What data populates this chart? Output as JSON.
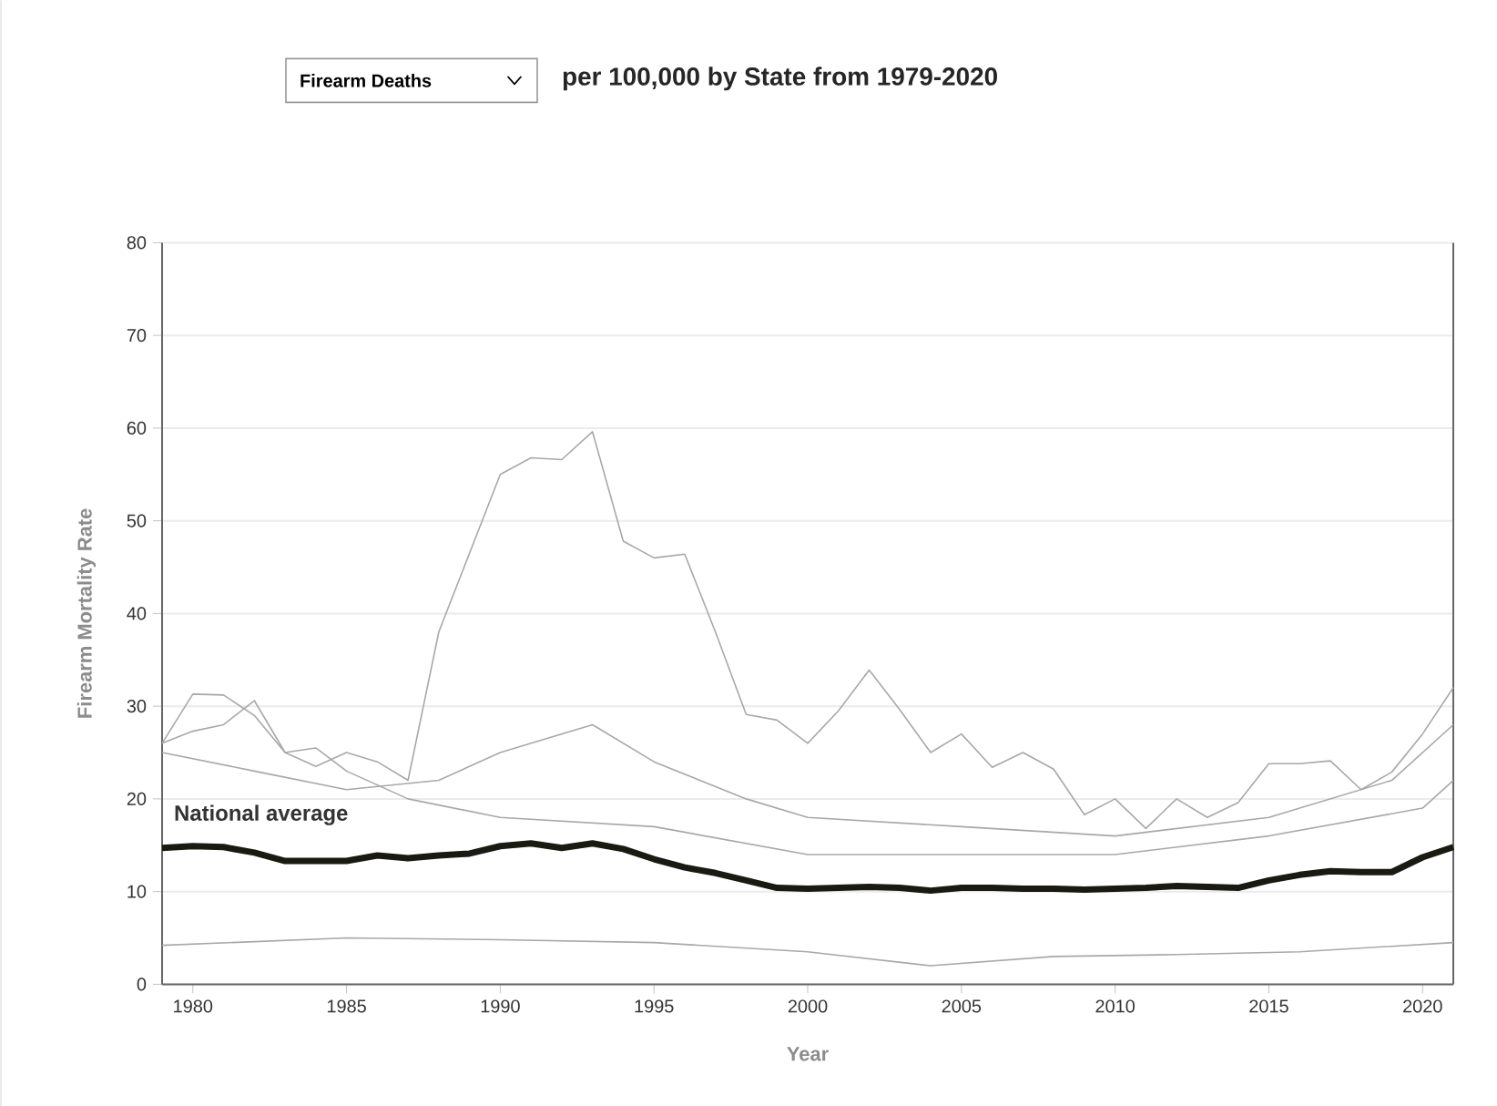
{
  "chart_data": {
    "type": "line",
    "title": "per 100,000 by State from 1979-2020",
    "annotations": [
      "Firearm Deaths"
    ],
    "xlabel": "Year",
    "ylabel": "Firearm Mortality Rate",
    "xlim": [
      1979,
      2021
    ],
    "xticks": [
      1980,
      1985,
      1990,
      1995,
      2000,
      2005,
      2010,
      2015,
      2020
    ],
    "ylim": [
      0,
      80
    ],
    "yticks": [
      0,
      10,
      20,
      30,
      40,
      50,
      60,
      70,
      80
    ],
    "grid": "y",
    "line_style": "solid",
    "series": [
      {
        "color": "#a8a8a8",
        "x": [
          1979,
          1980,
          1981,
          1982,
          1983,
          1984,
          1985,
          1986,
          1987,
          1988,
          1989,
          1990,
          1991,
          1992,
          1993,
          1994,
          1995,
          1996,
          1997,
          1998,
          1999,
          2000,
          2001,
          2002,
          2003,
          2004,
          2005,
          2006,
          2007,
          2008,
          2009,
          2010,
          2011,
          2012,
          2013,
          2014,
          2015,
          2016,
          2017,
          2018,
          2019,
          2020,
          2021
        ],
        "values": [
          26,
          27.3,
          28,
          30.6,
          25,
          23.5,
          25,
          24,
          22,
          38,
          46.5,
          55,
          56.8,
          56.6,
          59.6,
          47.8,
          46,
          46.4,
          38,
          29.1,
          28.5,
          26,
          29.5,
          33.9,
          29.6,
          25,
          27,
          23.4,
          25,
          23.2,
          18.3,
          20,
          16.8,
          20,
          18,
          19.6,
          23.8,
          23.8,
          24.1,
          21,
          22.9,
          27,
          32
        ]
      },
      {
        "color": "#a8a8a8",
        "x": [
          1979,
          1980,
          1981,
          1982,
          1983,
          1984,
          1985,
          1987,
          1990,
          1995,
          2000,
          2005,
          2010,
          2015,
          2020,
          2021
        ],
        "values": [
          26,
          31.3,
          31.2,
          29,
          25,
          25.5,
          23,
          20,
          18,
          17,
          14,
          14,
          14,
          16,
          19,
          22
        ]
      },
      {
        "color": "#a8a8a8",
        "x": [
          1979,
          1982,
          1985,
          1988,
          1990,
          1993,
          1995,
          1998,
          2000,
          2005,
          2010,
          2015,
          2019,
          2021
        ],
        "values": [
          25,
          23,
          21,
          22,
          25,
          28,
          24,
          20,
          18,
          17,
          16,
          18,
          22,
          28
        ]
      },
      {
        "color": "#a8a8a8",
        "x": [
          1979,
          1982,
          1985,
          1990,
          1995,
          2000,
          2004,
          2008,
          2012,
          2016,
          2021
        ],
        "values": [
          4.2,
          4.6,
          5,
          4.8,
          4.5,
          3.5,
          2,
          3,
          3.2,
          3.5,
          4.5
        ]
      },
      {
        "name": "National average",
        "color": "#1a1a12",
        "x": [
          1979,
          1980,
          1981,
          1982,
          1983,
          1984,
          1985,
          1986,
          1987,
          1988,
          1989,
          1990,
          1991,
          1992,
          1993,
          1994,
          1995,
          1996,
          1997,
          1998,
          1999,
          2000,
          2001,
          2002,
          2003,
          2004,
          2005,
          2006,
          2007,
          2008,
          2009,
          2010,
          2011,
          2012,
          2013,
          2014,
          2015,
          2016,
          2017,
          2018,
          2019,
          2020,
          2021
        ],
        "values": [
          14.7,
          14.9,
          14.8,
          14.2,
          13.3,
          13.3,
          13.3,
          13.9,
          13.6,
          13.9,
          14.1,
          14.9,
          15.2,
          14.7,
          15.2,
          14.6,
          13.5,
          12.6,
          12,
          11.2,
          10.4,
          10.3,
          10.4,
          10.5,
          10.4,
          10.1,
          10.4,
          10.4,
          10.3,
          10.3,
          10.2,
          10.3,
          10.4,
          10.6,
          10.5,
          10.4,
          11.2,
          11.8,
          12.2,
          12.1,
          12.1,
          13.7,
          14.8
        ]
      }
    ]
  }
}
